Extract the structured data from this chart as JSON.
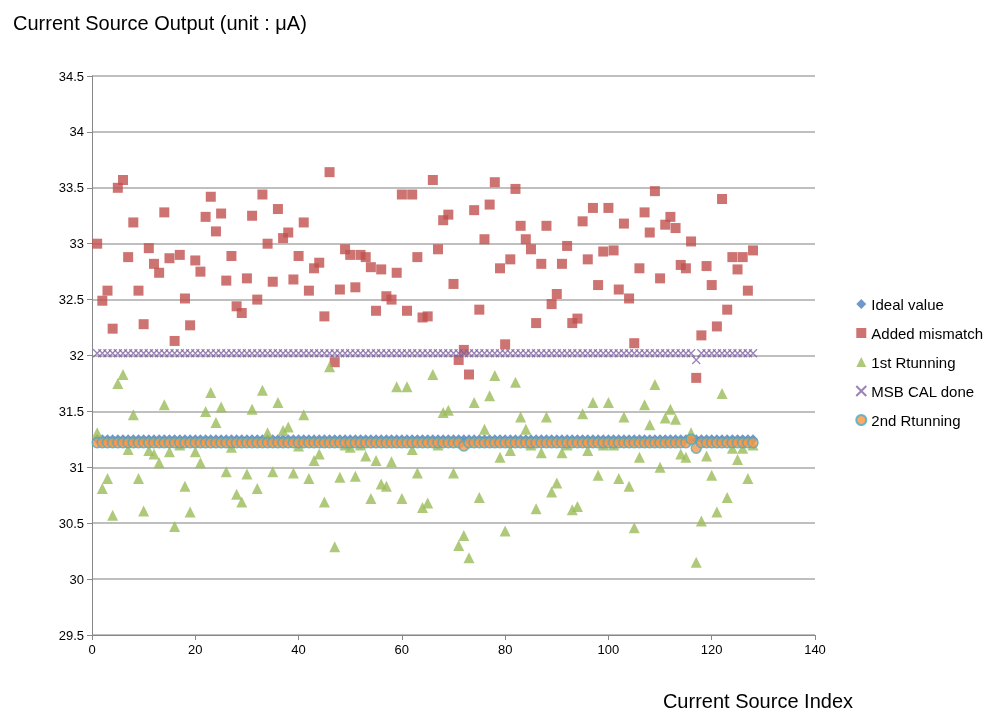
{
  "chart_data": {
    "type": "scatter",
    "title": "Current Source Output (unit : μA)",
    "xlabel": "Current Source Index",
    "x": [
      1,
      2,
      3,
      4,
      5,
      6,
      7,
      8,
      9,
      10,
      11,
      12,
      13,
      14,
      15,
      16,
      17,
      18,
      19,
      20,
      21,
      22,
      23,
      24,
      25,
      26,
      27,
      28,
      29,
      30,
      31,
      32,
      33,
      34,
      35,
      36,
      37,
      38,
      39,
      40,
      41,
      42,
      43,
      44,
      45,
      46,
      47,
      48,
      49,
      50,
      51,
      52,
      53,
      54,
      55,
      56,
      57,
      58,
      59,
      60,
      61,
      62,
      63,
      64,
      65,
      66,
      67,
      68,
      69,
      70,
      71,
      72,
      73,
      74,
      75,
      76,
      77,
      78,
      79,
      80,
      81,
      82,
      83,
      84,
      85,
      86,
      87,
      88,
      89,
      90,
      91,
      92,
      93,
      94,
      95,
      96,
      97,
      98,
      99,
      100,
      101,
      102,
      103,
      104,
      105,
      106,
      107,
      108,
      109,
      110,
      111,
      112,
      113,
      114,
      115,
      116,
      117,
      118,
      119,
      120,
      121,
      122,
      123,
      124,
      125,
      126,
      127,
      128
    ],
    "xlim": [
      0,
      140
    ],
    "xticks": [
      0,
      20,
      40,
      60,
      80,
      100,
      120,
      140
    ],
    "ylim": [
      29.5,
      34.5
    ],
    "yticks": [
      29.5,
      30,
      30.5,
      31,
      31.5,
      32,
      32.5,
      33,
      33.5,
      34,
      34.5
    ],
    "grid": "y",
    "legend": "right",
    "series": [
      {
        "name": "Ideal value",
        "color": "#4a7ebb",
        "marker": "diamond",
        "values": [
          31.25,
          31.25,
          31.25,
          31.25,
          31.25,
          31.25,
          31.25,
          31.25,
          31.25,
          31.25,
          31.25,
          31.25,
          31.25,
          31.25,
          31.25,
          31.25,
          31.25,
          31.25,
          31.25,
          31.25,
          31.25,
          31.25,
          31.25,
          31.25,
          31.25,
          31.25,
          31.25,
          31.25,
          31.25,
          31.25,
          31.25,
          31.25,
          31.25,
          31.25,
          31.25,
          31.25,
          31.25,
          31.25,
          31.25,
          31.25,
          31.25,
          31.25,
          31.25,
          31.25,
          31.25,
          31.25,
          31.25,
          31.25,
          31.25,
          31.25,
          31.25,
          31.25,
          31.25,
          31.25,
          31.25,
          31.25,
          31.25,
          31.25,
          31.25,
          31.25,
          31.25,
          31.25,
          31.25,
          31.25,
          31.25,
          31.25,
          31.25,
          31.25,
          31.25,
          31.25,
          31.25,
          31.25,
          31.25,
          31.25,
          31.25,
          31.25,
          31.25,
          31.25,
          31.25,
          31.25,
          31.25,
          31.25,
          31.25,
          31.25,
          31.25,
          31.25,
          31.25,
          31.25,
          31.25,
          31.25,
          31.25,
          31.25,
          31.25,
          31.25,
          31.25,
          31.25,
          31.25,
          31.25,
          31.25,
          31.25,
          31.25,
          31.25,
          31.25,
          31.25,
          31.25,
          31.25,
          31.25,
          31.25,
          31.25,
          31.25,
          31.25,
          31.25,
          31.25,
          31.25,
          31.25,
          31.25,
          31.25,
          31.25,
          31.25,
          31.25,
          31.25,
          31.25,
          31.25,
          31.25,
          31.25,
          31.25,
          31.25,
          31.25
        ]
      },
      {
        "name": "Added mismatch",
        "color": "#c0504d",
        "marker": "square",
        "values": [
          33.0,
          32.49,
          32.58,
          32.24,
          33.5,
          33.57,
          32.88,
          33.19,
          32.58,
          32.28,
          32.96,
          32.82,
          32.74,
          33.28,
          32.87,
          32.13,
          32.9,
          32.51,
          32.27,
          32.85,
          32.75,
          33.24,
          33.42,
          33.11,
          33.27,
          32.67,
          32.89,
          32.44,
          32.38,
          32.69,
          33.25,
          32.5,
          33.44,
          33.0,
          32.66,
          33.31,
          33.05,
          33.1,
          32.68,
          32.89,
          33.19,
          32.58,
          32.78,
          32.83,
          32.35,
          33.64,
          31.94,
          32.59,
          32.95,
          32.9,
          32.61,
          32.9,
          32.88,
          32.79,
          32.4,
          32.77,
          32.53,
          32.5,
          32.74,
          33.44,
          32.4,
          33.44,
          32.88,
          32.34,
          32.35,
          33.57,
          32.95,
          33.21,
          33.26,
          32.64,
          31.96,
          32.05,
          31.83,
          33.3,
          32.41,
          33.04,
          33.35,
          33.55,
          32.78,
          32.1,
          32.86,
          33.49,
          33.16,
          33.04,
          32.95,
          32.29,
          32.82,
          33.16,
          32.46,
          32.55,
          32.82,
          32.98,
          32.29,
          32.33,
          33.2,
          32.86,
          33.32,
          32.63,
          32.93,
          33.32,
          32.94,
          32.59,
          33.18,
          32.51,
          32.11,
          32.78,
          33.28,
          33.1,
          33.47,
          32.69,
          33.17,
          33.24,
          33.14,
          32.81,
          32.78,
          33.02,
          31.8,
          32.18,
          32.8,
          32.63,
          32.26,
          33.4,
          32.41,
          32.88,
          32.77,
          32.88,
          32.58,
          32.94
        ]
      },
      {
        "name": "1st Rtunning",
        "color": "#9bbb59",
        "marker": "triangle",
        "values": [
          31.31,
          30.81,
          30.9,
          30.57,
          31.75,
          31.83,
          31.16,
          31.47,
          30.9,
          30.61,
          31.15,
          31.12,
          31.04,
          31.56,
          31.14,
          30.47,
          31.2,
          30.83,
          30.6,
          31.14,
          31.04,
          31.5,
          31.67,
          31.4,
          31.54,
          30.96,
          31.18,
          30.76,
          30.69,
          30.94,
          31.52,
          30.81,
          31.69,
          31.31,
          30.96,
          31.58,
          31.33,
          31.36,
          30.95,
          31.19,
          31.47,
          30.9,
          31.06,
          31.12,
          30.69,
          31.9,
          30.29,
          30.91,
          31.2,
          31.18,
          30.92,
          31.2,
          31.1,
          30.72,
          31.06,
          30.85,
          30.83,
          31.05,
          31.72,
          30.72,
          31.72,
          31.16,
          30.95,
          30.64,
          30.68,
          31.83,
          31.2,
          31.49,
          31.51,
          30.95,
          30.3,
          30.39,
          30.19,
          31.58,
          30.73,
          31.34,
          31.64,
          31.82,
          31.09,
          30.43,
          31.15,
          31.76,
          31.45,
          31.34,
          31.2,
          30.63,
          31.13,
          31.45,
          30.78,
          30.86,
          31.13,
          31.2,
          30.62,
          30.65,
          31.48,
          31.15,
          31.58,
          30.93,
          31.2,
          31.58,
          31.2,
          30.9,
          31.45,
          30.83,
          30.46,
          31.09,
          31.56,
          31.38,
          31.74,
          31.0,
          31.44,
          31.52,
          31.43,
          31.12,
          31.09,
          31.31,
          30.15,
          30.52,
          31.1,
          30.93,
          30.6,
          31.66,
          30.73,
          31.17,
          31.07,
          31.17,
          30.9,
          31.2
        ]
      },
      {
        "name": "MSB CAL done",
        "color": "#8064a2",
        "marker": "cross",
        "values": [
          32.02,
          32.02,
          32.02,
          32.02,
          32.02,
          32.02,
          32.02,
          32.02,
          32.02,
          32.02,
          32.02,
          32.02,
          32.02,
          32.02,
          32.02,
          32.02,
          32.02,
          32.02,
          32.02,
          32.02,
          32.02,
          32.02,
          32.02,
          32.02,
          32.02,
          32.02,
          32.02,
          32.02,
          32.02,
          32.02,
          32.02,
          32.02,
          32.02,
          32.02,
          32.02,
          32.02,
          32.02,
          32.02,
          32.02,
          32.02,
          32.02,
          32.02,
          32.02,
          32.02,
          32.02,
          32.02,
          32.02,
          32.02,
          32.02,
          32.02,
          32.02,
          32.02,
          32.02,
          32.02,
          32.02,
          32.02,
          32.02,
          32.02,
          32.02,
          32.02,
          32.02,
          32.02,
          32.02,
          32.02,
          32.02,
          32.02,
          32.02,
          32.02,
          32.02,
          32.02,
          32.02,
          32.02,
          32.02,
          32.02,
          32.02,
          32.02,
          32.02,
          32.02,
          32.02,
          32.02,
          32.02,
          32.02,
          32.02,
          32.02,
          32.02,
          32.02,
          32.02,
          32.02,
          32.02,
          32.02,
          32.02,
          32.02,
          32.02,
          32.02,
          32.02,
          32.02,
          32.02,
          32.02,
          32.02,
          32.02,
          32.02,
          32.02,
          32.02,
          32.02,
          32.02,
          32.02,
          32.02,
          32.02,
          32.02,
          32.02,
          32.02,
          32.02,
          32.02,
          32.02,
          32.02,
          32.02,
          31.96,
          32.02,
          32.02,
          32.02,
          32.02,
          32.02,
          32.02,
          32.02,
          32.02,
          32.02,
          32.02,
          32.02
        ]
      },
      {
        "name": "2nd Rtunning",
        "color": "#f79646",
        "marker": "circle",
        "values": [
          31.22,
          31.22,
          31.22,
          31.22,
          31.22,
          31.22,
          31.22,
          31.22,
          31.22,
          31.22,
          31.22,
          31.22,
          31.22,
          31.22,
          31.22,
          31.22,
          31.22,
          31.22,
          31.22,
          31.22,
          31.22,
          31.22,
          31.22,
          31.22,
          31.22,
          31.22,
          31.22,
          31.22,
          31.22,
          31.22,
          31.22,
          31.22,
          31.22,
          31.22,
          31.22,
          31.22,
          31.22,
          31.22,
          31.22,
          31.22,
          31.22,
          31.22,
          31.22,
          31.22,
          31.22,
          31.22,
          31.22,
          31.22,
          31.22,
          31.22,
          31.22,
          31.22,
          31.22,
          31.22,
          31.22,
          31.22,
          31.22,
          31.22,
          31.22,
          31.22,
          31.22,
          31.22,
          31.22,
          31.22,
          31.22,
          31.22,
          31.22,
          31.22,
          31.22,
          31.22,
          31.22,
          31.19,
          31.22,
          31.22,
          31.22,
          31.22,
          31.22,
          31.22,
          31.22,
          31.22,
          31.22,
          31.22,
          31.22,
          31.22,
          31.22,
          31.22,
          31.22,
          31.22,
          31.22,
          31.22,
          31.22,
          31.22,
          31.22,
          31.22,
          31.22,
          31.22,
          31.22,
          31.22,
          31.22,
          31.22,
          31.22,
          31.22,
          31.22,
          31.22,
          31.22,
          31.22,
          31.22,
          31.22,
          31.22,
          31.22,
          31.22,
          31.22,
          31.22,
          31.22,
          31.22,
          31.25,
          31.17,
          31.22,
          31.22,
          31.22,
          31.22,
          31.22,
          31.22,
          31.22,
          31.22,
          31.22,
          31.22,
          31.22
        ]
      }
    ]
  }
}
